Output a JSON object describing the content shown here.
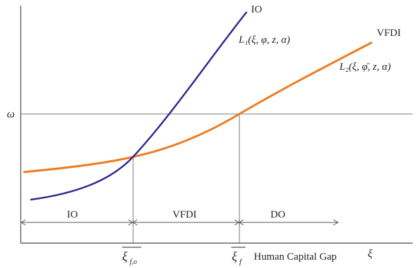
{
  "labels": {
    "io_curve": "IO",
    "vfdi_curve": "VFDI",
    "l1_expr": "L₁(ξ, φ, z, α)",
    "l2_expr": "L₂(ξ, φ̄, z, α)",
    "omega": "ω",
    "region_io": "IO",
    "region_vfdi": "VFDI",
    "region_do": "DO",
    "xi_f_o": "ξ",
    "xi_f_o_sub": "f,o",
    "xi_f": "ξ",
    "xi_f_sub": "f",
    "xaxis_label": "Human Capital Gap",
    "xaxis_symbol": "ξ"
  },
  "colors": {
    "l1": "#2b2a8f",
    "l2": "#f07a1e",
    "axis": "#444444",
    "guide": "#777777"
  }
}
